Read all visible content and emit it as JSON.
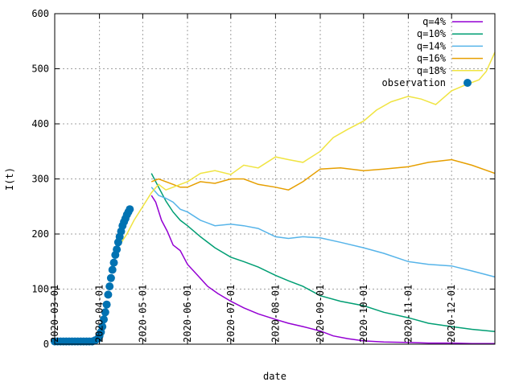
{
  "chart_data": {
    "type": "line",
    "title": "",
    "xlabel": "date",
    "ylabel": "I(t)",
    "xlim": [
      "2020-03-01",
      "2020-12-31"
    ],
    "ylim": [
      0,
      600
    ],
    "grid": true,
    "legend_position": "top-right",
    "x_ticks": [
      "2020-03-01",
      "2020-04-01",
      "2020-05-01",
      "2020-06-01",
      "2020-07-01",
      "2020-08-01",
      "2020-09-01",
      "2020-10-01",
      "2020-11-01",
      "2020-12-01"
    ],
    "y_ticks": [
      0,
      100,
      200,
      300,
      400,
      500,
      600
    ],
    "series": [
      {
        "name": "q=4%",
        "color": "#9400d3",
        "points": [
          [
            "2020-05-07",
            270
          ],
          [
            "2020-05-10",
            258
          ],
          [
            "2020-05-14",
            225
          ],
          [
            "2020-05-18",
            205
          ],
          [
            "2020-05-22",
            180
          ],
          [
            "2020-05-27",
            170
          ],
          [
            "2020-06-01",
            145
          ],
          [
            "2020-06-08",
            125
          ],
          [
            "2020-06-15",
            105
          ],
          [
            "2020-06-22",
            92
          ],
          [
            "2020-07-01",
            78
          ],
          [
            "2020-07-10",
            66
          ],
          [
            "2020-07-20",
            55
          ],
          [
            "2020-08-01",
            45
          ],
          [
            "2020-08-10",
            38
          ],
          [
            "2020-08-20",
            32
          ],
          [
            "2020-09-01",
            24
          ],
          [
            "2020-09-10",
            15
          ],
          [
            "2020-09-20",
            10
          ],
          [
            "2020-10-01",
            6
          ],
          [
            "2020-10-15",
            4
          ],
          [
            "2020-11-01",
            3
          ],
          [
            "2020-11-15",
            2
          ],
          [
            "2020-12-01",
            2
          ],
          [
            "2020-12-15",
            1
          ],
          [
            "2020-12-31",
            1
          ]
        ]
      },
      {
        "name": "q=10%",
        "color": "#009e73",
        "points": [
          [
            "2020-05-07",
            310
          ],
          [
            "2020-05-12",
            285
          ],
          [
            "2020-05-17",
            260
          ],
          [
            "2020-05-22",
            240
          ],
          [
            "2020-05-27",
            225
          ],
          [
            "2020-06-01",
            215
          ],
          [
            "2020-06-10",
            195
          ],
          [
            "2020-06-20",
            175
          ],
          [
            "2020-07-01",
            158
          ],
          [
            "2020-07-10",
            150
          ],
          [
            "2020-07-20",
            140
          ],
          [
            "2020-08-01",
            125
          ],
          [
            "2020-08-10",
            115
          ],
          [
            "2020-08-20",
            105
          ],
          [
            "2020-09-01",
            88
          ],
          [
            "2020-09-15",
            78
          ],
          [
            "2020-10-01",
            70
          ],
          [
            "2020-10-15",
            58
          ],
          [
            "2020-11-01",
            48
          ],
          [
            "2020-11-15",
            38
          ],
          [
            "2020-12-01",
            32
          ],
          [
            "2020-12-15",
            27
          ],
          [
            "2020-12-31",
            23
          ]
        ]
      },
      {
        "name": "q=14%",
        "color": "#56b4e9",
        "points": [
          [
            "2020-05-07",
            285
          ],
          [
            "2020-05-12",
            270
          ],
          [
            "2020-05-17",
            265
          ],
          [
            "2020-05-22",
            258
          ],
          [
            "2020-05-27",
            245
          ],
          [
            "2020-06-01",
            240
          ],
          [
            "2020-06-10",
            225
          ],
          [
            "2020-06-20",
            215
          ],
          [
            "2020-07-01",
            218
          ],
          [
            "2020-07-10",
            215
          ],
          [
            "2020-07-20",
            210
          ],
          [
            "2020-08-01",
            195
          ],
          [
            "2020-08-10",
            192
          ],
          [
            "2020-08-20",
            195
          ],
          [
            "2020-09-01",
            193
          ],
          [
            "2020-09-15",
            185
          ],
          [
            "2020-10-01",
            175
          ],
          [
            "2020-10-15",
            165
          ],
          [
            "2020-11-01",
            150
          ],
          [
            "2020-11-15",
            145
          ],
          [
            "2020-12-01",
            142
          ],
          [
            "2020-12-15",
            133
          ],
          [
            "2020-12-31",
            122
          ]
        ]
      },
      {
        "name": "q=16%",
        "color": "#e69f00",
        "points": [
          [
            "2020-05-07",
            295
          ],
          [
            "2020-05-12",
            300
          ],
          [
            "2020-05-17",
            295
          ],
          [
            "2020-05-22",
            290
          ],
          [
            "2020-05-27",
            285
          ],
          [
            "2020-06-01",
            285
          ],
          [
            "2020-06-10",
            295
          ],
          [
            "2020-06-20",
            292
          ],
          [
            "2020-07-01",
            300
          ],
          [
            "2020-07-10",
            300
          ],
          [
            "2020-07-20",
            290
          ],
          [
            "2020-08-01",
            285
          ],
          [
            "2020-08-10",
            280
          ],
          [
            "2020-08-20",
            295
          ],
          [
            "2020-09-01",
            318
          ],
          [
            "2020-09-15",
            320
          ],
          [
            "2020-10-01",
            315
          ],
          [
            "2020-10-15",
            318
          ],
          [
            "2020-11-01",
            322
          ],
          [
            "2020-11-15",
            330
          ],
          [
            "2020-12-01",
            335
          ],
          [
            "2020-12-15",
            325
          ],
          [
            "2020-12-31",
            310
          ]
        ]
      },
      {
        "name": "q=18%",
        "color": "#f0e442",
        "points": [
          [
            "2020-04-15",
            180
          ],
          [
            "2020-04-20",
            200
          ],
          [
            "2020-04-25",
            225
          ],
          [
            "2020-05-01",
            250
          ],
          [
            "2020-05-07",
            275
          ],
          [
            "2020-05-12",
            290
          ],
          [
            "2020-05-17",
            280
          ],
          [
            "2020-05-22",
            285
          ],
          [
            "2020-05-27",
            290
          ],
          [
            "2020-06-01",
            295
          ],
          [
            "2020-06-10",
            310
          ],
          [
            "2020-06-20",
            315
          ],
          [
            "2020-07-01",
            308
          ],
          [
            "2020-07-10",
            325
          ],
          [
            "2020-07-20",
            320
          ],
          [
            "2020-08-01",
            340
          ],
          [
            "2020-08-10",
            335
          ],
          [
            "2020-08-20",
            330
          ],
          [
            "2020-09-01",
            350
          ],
          [
            "2020-09-10",
            375
          ],
          [
            "2020-09-20",
            390
          ],
          [
            "2020-10-01",
            405
          ],
          [
            "2020-10-10",
            425
          ],
          [
            "2020-10-20",
            440
          ],
          [
            "2020-11-01",
            450
          ],
          [
            "2020-11-10",
            445
          ],
          [
            "2020-11-20",
            435
          ],
          [
            "2020-12-01",
            460
          ],
          [
            "2020-12-10",
            470
          ],
          [
            "2020-12-20",
            480
          ],
          [
            "2020-12-25",
            495
          ],
          [
            "2020-12-31",
            530
          ]
        ]
      }
    ],
    "observation": {
      "name": "observation",
      "color": "#0072b2",
      "points": [
        [
          "2020-03-01",
          5
        ],
        [
          "2020-03-03",
          5
        ],
        [
          "2020-03-05",
          5
        ],
        [
          "2020-03-07",
          5
        ],
        [
          "2020-03-09",
          5
        ],
        [
          "2020-03-11",
          5
        ],
        [
          "2020-03-13",
          5
        ],
        [
          "2020-03-15",
          5
        ],
        [
          "2020-03-17",
          5
        ],
        [
          "2020-03-19",
          5
        ],
        [
          "2020-03-21",
          5
        ],
        [
          "2020-03-23",
          5
        ],
        [
          "2020-03-25",
          5
        ],
        [
          "2020-03-27",
          5
        ],
        [
          "2020-03-29",
          7
        ],
        [
          "2020-03-31",
          10
        ],
        [
          "2020-04-01",
          15
        ],
        [
          "2020-04-02",
          22
        ],
        [
          "2020-04-03",
          32
        ],
        [
          "2020-04-04",
          45
        ],
        [
          "2020-04-05",
          58
        ],
        [
          "2020-04-06",
          72
        ],
        [
          "2020-04-07",
          90
        ],
        [
          "2020-04-08",
          105
        ],
        [
          "2020-04-09",
          120
        ],
        [
          "2020-04-10",
          135
        ],
        [
          "2020-04-11",
          148
        ],
        [
          "2020-04-12",
          162
        ],
        [
          "2020-04-13",
          172
        ],
        [
          "2020-04-14",
          185
        ],
        [
          "2020-04-15",
          195
        ],
        [
          "2020-04-16",
          205
        ],
        [
          "2020-04-17",
          215
        ],
        [
          "2020-04-18",
          222
        ],
        [
          "2020-04-19",
          228
        ],
        [
          "2020-04-20",
          235
        ],
        [
          "2020-04-21",
          240
        ],
        [
          "2020-04-22",
          245
        ]
      ]
    }
  }
}
